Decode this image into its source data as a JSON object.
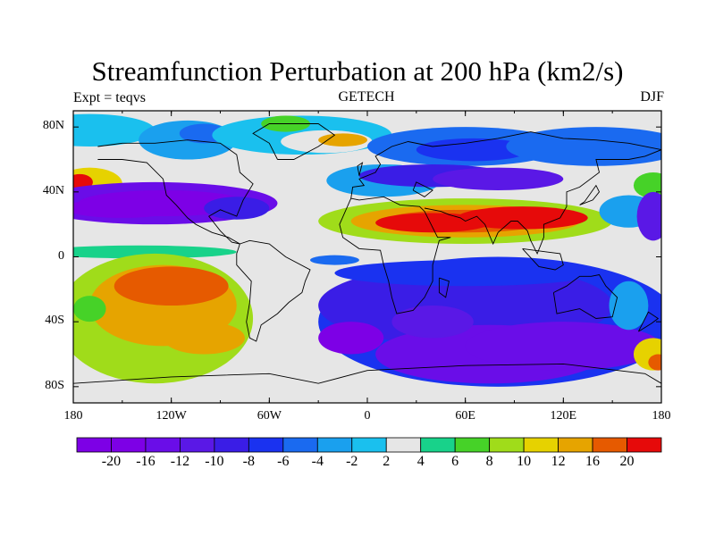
{
  "plot": {
    "title": "Streamfunction Perturbation at 200 hPa (km2/s)",
    "left_label": "Expt = teqvs",
    "center_label": "GETECH",
    "right_label": "DJF"
  },
  "axes": {
    "lon_ticks": [
      "180",
      "120W",
      "60W",
      "0",
      "60E",
      "120E",
      "180"
    ],
    "lon_values": [
      -180,
      -120,
      -60,
      0,
      60,
      120,
      180
    ],
    "lat_ticks": [
      "80N",
      "40N",
      "0",
      "40S",
      "80S"
    ],
    "lat_values": [
      80,
      40,
      0,
      -40,
      -80
    ],
    "lon_range": [
      -180,
      180
    ],
    "lat_range": [
      -90,
      90
    ]
  },
  "colorbar": {
    "labels": [
      "-20",
      "-16",
      "-12",
      "-10",
      "-8",
      "-6",
      "-4",
      "-2",
      "2",
      "4",
      "6",
      "8",
      "10",
      "12",
      "16",
      "20"
    ],
    "colors": [
      "#7d00e6",
      "#6a0de8",
      "#5a18e6",
      "#3a1de6",
      "#1a32f0",
      "#1a6af0",
      "#1aa0ee",
      "#1ac0ee",
      "#e6e6e6",
      "#18d28a",
      "#46d228",
      "#a0dc1a",
      "#e6d200",
      "#e6a400",
      "#e65a00",
      "#e60a0a"
    ]
  }
}
